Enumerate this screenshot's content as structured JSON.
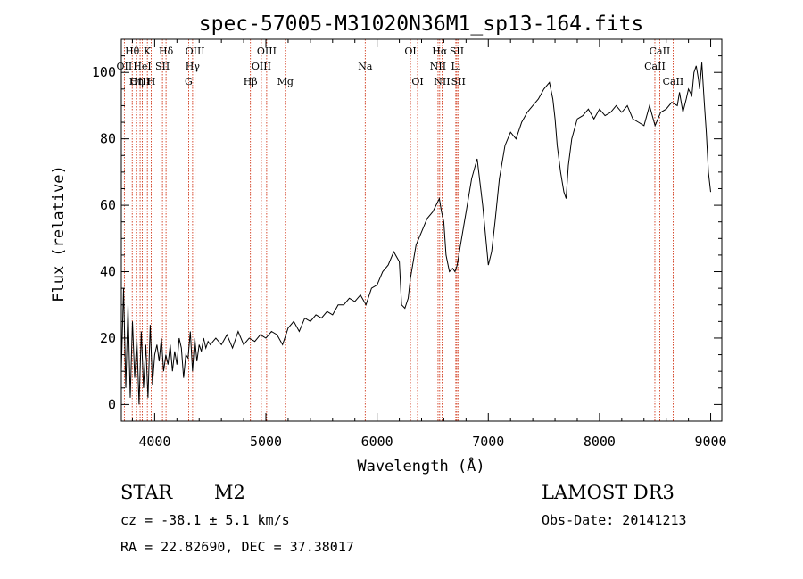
{
  "chart_data": {
    "type": "line",
    "title": "spec-57005-M31020N36M1_sp13-164.fits",
    "xlabel": "Wavelength (Å)",
    "ylabel": "Flux (relative)",
    "xlim": [
      3700,
      9100
    ],
    "ylim": [
      -5,
      110
    ],
    "xticks": [
      4000,
      5000,
      6000,
      7000,
      8000,
      9000
    ],
    "yticks": [
      0,
      20,
      40,
      60,
      80,
      100
    ],
    "series": [
      {
        "name": "flux",
        "x": [
          3700,
          3720,
          3740,
          3760,
          3780,
          3800,
          3820,
          3840,
          3860,
          3880,
          3900,
          3920,
          3940,
          3960,
          3980,
          4000,
          4020,
          4040,
          4060,
          4080,
          4100,
          4120,
          4140,
          4160,
          4180,
          4200,
          4220,
          4240,
          4260,
          4280,
          4300,
          4320,
          4340,
          4360,
          4380,
          4400,
          4420,
          4440,
          4460,
          4480,
          4500,
          4550,
          4600,
          4650,
          4700,
          4750,
          4800,
          4850,
          4900,
          4950,
          5000,
          5050,
          5100,
          5150,
          5200,
          5250,
          5300,
          5350,
          5400,
          5450,
          5500,
          5550,
          5600,
          5650,
          5700,
          5750,
          5800,
          5850,
          5900,
          5950,
          6000,
          6050,
          6100,
          6150,
          6200,
          6220,
          6250,
          6280,
          6300,
          6350,
          6400,
          6450,
          6500,
          6530,
          6560,
          6580,
          6600,
          6620,
          6650,
          6680,
          6700,
          6720,
          6750,
          6800,
          6850,
          6900,
          6950,
          7000,
          7030,
          7060,
          7100,
          7150,
          7200,
          7250,
          7300,
          7350,
          7400,
          7450,
          7500,
          7550,
          7580,
          7600,
          7620,
          7650,
          7680,
          7700,
          7720,
          7750,
          7800,
          7850,
          7900,
          7950,
          8000,
          8050,
          8100,
          8150,
          8200,
          8250,
          8300,
          8350,
          8400,
          8450,
          8500,
          8550,
          8600,
          8650,
          8700,
          8720,
          8750,
          8780,
          8800,
          8830,
          8850,
          8870,
          8890,
          8900,
          8920,
          8940,
          8960,
          8980,
          9000
        ],
        "y": [
          10,
          35,
          5,
          30,
          2,
          25,
          8,
          20,
          0,
          22,
          5,
          18,
          2,
          24,
          6,
          15,
          18,
          13,
          20,
          10,
          15,
          12,
          18,
          10,
          16,
          12,
          20,
          17,
          8,
          15,
          14,
          22,
          10,
          20,
          13,
          18,
          16,
          20,
          17,
          19,
          18,
          20,
          18,
          21,
          17,
          22,
          18,
          20,
          19,
          21,
          20,
          22,
          21,
          18,
          23,
          25,
          22,
          26,
          25,
          27,
          26,
          28,
          27,
          30,
          30,
          32,
          31,
          33,
          30,
          35,
          36,
          40,
          42,
          46,
          43,
          30,
          29,
          32,
          38,
          48,
          52,
          56,
          58,
          60,
          62,
          58,
          55,
          45,
          40,
          41,
          40,
          42,
          48,
          58,
          68,
          74,
          60,
          42,
          46,
          55,
          68,
          78,
          82,
          80,
          85,
          88,
          90,
          92,
          95,
          97,
          92,
          86,
          78,
          70,
          64,
          62,
          72,
          80,
          86,
          87,
          89,
          86,
          89,
          87,
          88,
          90,
          88,
          90,
          86,
          85,
          84,
          90,
          84,
          88,
          89,
          91,
          90,
          94,
          88,
          92,
          95,
          93,
          100,
          102,
          98,
          95,
          103,
          92,
          82,
          70,
          64
        ]
      }
    ],
    "line_markers": [
      {
        "label": "Hθ",
        "wavelength": 3798,
        "row": 0
      },
      {
        "label": "OII",
        "wavelength": 3727,
        "row": 1
      },
      {
        "label": "OIII",
        "wavelength": 3869,
        "row": 2
      },
      {
        "label": "K",
        "wavelength": 3934,
        "row": 0
      },
      {
        "label": "HeI",
        "wavelength": 3889,
        "row": 1
      },
      {
        "label": "Hη",
        "wavelength": 3835,
        "row": 2
      },
      {
        "label": "H",
        "wavelength": 3969,
        "row": 2
      },
      {
        "label": "SII",
        "wavelength": 4070,
        "row": 1
      },
      {
        "label": "Hδ",
        "wavelength": 4102,
        "row": 0
      },
      {
        "label": "OIII",
        "wavelength": 4363,
        "row": 0
      },
      {
        "label": "Hγ",
        "wavelength": 4341,
        "row": 1
      },
      {
        "label": "G",
        "wavelength": 4305,
        "row": 2
      },
      {
        "label": "Hβ",
        "wavelength": 4861,
        "row": 2
      },
      {
        "label": "OIII",
        "wavelength": 5007,
        "row": 0
      },
      {
        "label": "OIII",
        "wavelength": 4959,
        "row": 1
      },
      {
        "label": "Mg",
        "wavelength": 5175,
        "row": 2
      },
      {
        "label": "Na",
        "wavelength": 5893,
        "row": 1
      },
      {
        "label": "OI",
        "wavelength": 6300,
        "row": 0
      },
      {
        "label": "OI",
        "wavelength": 6364,
        "row": 2
      },
      {
        "label": "Hα",
        "wavelength": 6563,
        "row": 0
      },
      {
        "label": "SII",
        "wavelength": 6717,
        "row": 0
      },
      {
        "label": "NII",
        "wavelength": 6548,
        "row": 1
      },
      {
        "label": "Li",
        "wavelength": 6708,
        "row": 1
      },
      {
        "label": "NII",
        "wavelength": 6584,
        "row": 2
      },
      {
        "label": "SII",
        "wavelength": 6731,
        "row": 2
      },
      {
        "label": "CaII",
        "wavelength": 8542,
        "row": 0
      },
      {
        "label": "CaII",
        "wavelength": 8498,
        "row": 1
      },
      {
        "label": "CaII",
        "wavelength": 8662,
        "row": 2
      }
    ],
    "marker_color": "#cc2200",
    "line_color": "#000000"
  },
  "info": {
    "object_type": "STAR",
    "subclass": "M2",
    "survey": "LAMOST DR3",
    "redshift": "cz = -38.1 ± 5.1 km/s",
    "obs_date": "Obs-Date: 20141213",
    "coords": "RA =  22.82690, DEC =  37.38017"
  }
}
